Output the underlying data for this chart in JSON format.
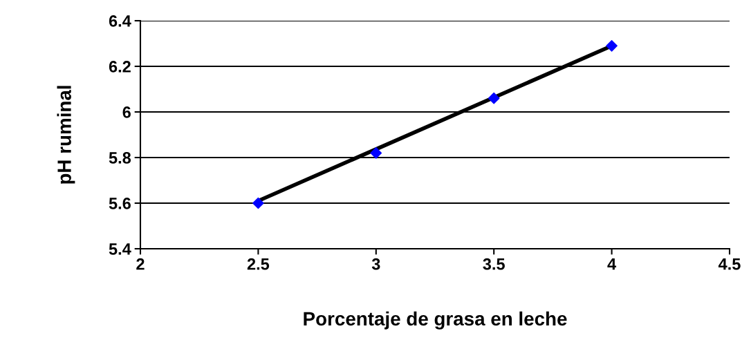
{
  "chart_data": {
    "type": "scatter",
    "xlabel": "Porcentaje de grasa en leche",
    "ylabel": "pH ruminal",
    "x": [
      2.5,
      3,
      3.5,
      4
    ],
    "series": [
      {
        "color": "#0000ff",
        "marker": "diamond",
        "values": [
          5.6,
          5.82,
          6.06,
          6.29
        ]
      },
      {
        "type": "line",
        "color": "#000000",
        "marker": "none",
        "line_style": "solid",
        "x": [
          2.5,
          4
        ],
        "values": [
          5.61,
          6.29
        ]
      }
    ],
    "xlim": [
      2,
      4.5
    ],
    "xticks": [
      2,
      2.5,
      3,
      3.5,
      4,
      4.5
    ],
    "ylim": [
      5.4,
      6.4
    ],
    "yticks": [
      5.4,
      5.6,
      5.8,
      6,
      6.2,
      6.4
    ],
    "grid": "y",
    "legend": false
  }
}
